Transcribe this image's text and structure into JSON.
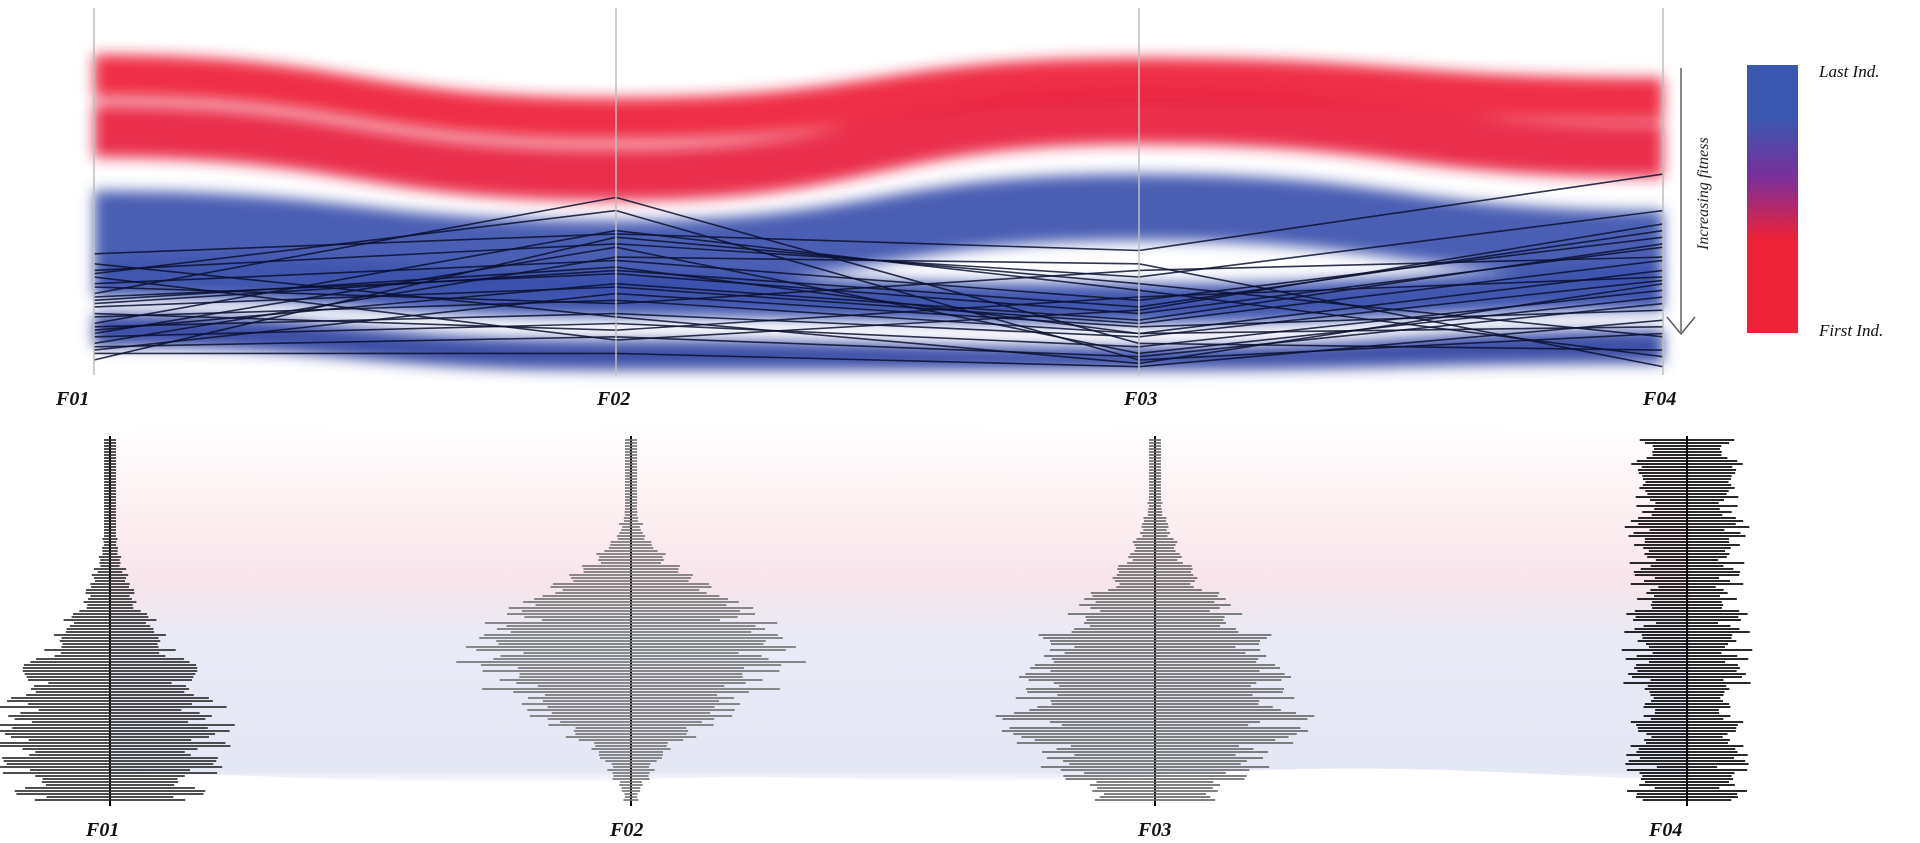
{
  "chart_data": [
    {
      "type": "parallel-coordinates",
      "axes": [
        "F01",
        "F02",
        "F03",
        "F04"
      ],
      "color_scale": {
        "colors": [
          "#ee2238",
          "#7a2f9a",
          "#3a57b0"
        ],
        "labels": {
          "top": "Last Ind.",
          "bottom": "First Ind."
        }
      },
      "direction_label": "Increasing fitness",
      "background_bands": [
        {
          "color": "#ee1f36",
          "positions": [
            0.05,
            0.18,
            0.06,
            0.12
          ]
        },
        {
          "color": "#e8203c",
          "positions": [
            0.2,
            0.33,
            0.16,
            0.26
          ]
        },
        {
          "color": "#3a50ac",
          "positions": [
            0.46,
            0.55,
            0.41,
            0.52
          ]
        },
        {
          "color": "#2f46a8",
          "positions": [
            0.66,
            0.72,
            0.74,
            0.7
          ]
        },
        {
          "color": "#2a3f9f",
          "positions": [
            0.83,
            0.91,
            0.93,
            0.88
          ]
        }
      ],
      "highlighted_lines": [
        [
          0.65,
          0.59,
          0.64,
          0.41
        ],
        [
          0.7,
          0.62,
          0.72,
          0.52
        ],
        [
          0.74,
          0.67,
          0.79,
          0.6
        ],
        [
          0.78,
          0.71,
          0.83,
          0.63
        ],
        [
          0.81,
          0.75,
          0.86,
          0.67
        ],
        [
          0.84,
          0.79,
          0.89,
          0.7
        ],
        [
          0.87,
          0.83,
          0.9,
          0.73
        ],
        [
          0.9,
          0.86,
          0.93,
          0.76
        ],
        [
          0.93,
          0.9,
          0.96,
          0.8
        ],
        [
          0.95,
          0.95,
          0.99,
          0.85
        ],
        [
          0.71,
          0.52,
          0.97,
          0.89
        ],
        [
          0.77,
          0.48,
          0.92,
          0.94
        ],
        [
          0.86,
          0.58,
          0.76,
          0.96
        ],
        [
          0.92,
          0.66,
          0.68,
          0.99
        ],
        [
          0.8,
          0.7,
          0.81,
          0.58
        ],
        [
          0.88,
          0.74,
          0.85,
          0.62
        ],
        [
          0.75,
          0.8,
          0.7,
          0.66
        ],
        [
          0.83,
          0.88,
          0.78,
          0.72
        ],
        [
          0.89,
          0.63,
          0.95,
          0.78
        ],
        [
          0.94,
          0.77,
          0.87,
          0.82
        ],
        [
          0.68,
          0.84,
          0.98,
          0.74
        ],
        [
          0.72,
          0.91,
          0.82,
          0.56
        ],
        [
          0.97,
          0.6,
          0.74,
          0.9
        ],
        [
          0.79,
          0.69,
          0.89,
          0.87
        ]
      ]
    },
    {
      "type": "histogram",
      "axes": [
        "F01",
        "F02",
        "F03",
        "F04"
      ],
      "distributions": [
        {
          "axis": "F01",
          "peak": 0.82,
          "spread": 0.23,
          "shade": "#303030"
        },
        {
          "axis": "F02",
          "peak": 0.6,
          "spread": 0.16,
          "shade": "#777777"
        },
        {
          "axis": "F03",
          "peak": 0.72,
          "spread": 0.22,
          "shade": "#6c6c6c"
        },
        {
          "axis": "F04",
          "peak": 0.55,
          "spread": 0.6,
          "shade": "#050505"
        }
      ]
    }
  ]
}
